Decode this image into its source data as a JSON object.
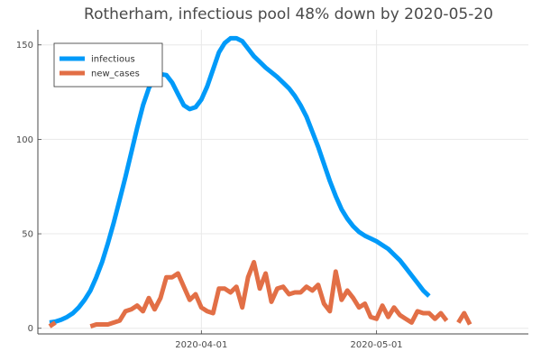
{
  "chart_data": {
    "type": "line",
    "title": "Rotherham, infectious pool 48% down by 2020-05-20",
    "xlabel": "",
    "ylabel": "",
    "x_start": "2020-03-06",
    "x_end": "2020-05-25",
    "xlim": [
      "2020-03-04",
      "2020-05-27"
    ],
    "ylim": [
      -3,
      158
    ],
    "y_ticks": [
      0,
      50,
      100,
      150
    ],
    "y_tick_labels": [
      "0",
      "50",
      "100",
      "150"
    ],
    "x_ticks": [
      "2020-04-01",
      "2020-05-01"
    ],
    "x_tick_labels": [
      "2020-04-01",
      "2020-05-01"
    ],
    "grid": true,
    "legend_position": "top-left",
    "series": [
      {
        "name": "infectious",
        "color": "#009af9",
        "values": [
          3,
          3.5,
          4.5,
          6,
          8,
          11,
          15,
          20,
          27,
          35,
          45,
          56,
          68,
          80,
          93,
          106,
          118,
          127,
          133,
          134.5,
          134,
          130,
          124,
          118,
          116,
          117,
          121,
          128,
          137,
          146,
          151,
          153.5,
          153.5,
          152,
          148,
          144,
          141,
          138,
          135.5,
          133,
          130,
          127,
          123,
          118,
          112,
          104,
          96,
          87,
          78,
          70,
          63,
          58,
          54,
          51,
          49,
          47.5,
          46,
          44,
          42,
          39,
          36,
          32,
          28,
          24,
          20,
          17
        ]
      },
      {
        "name": "new_cases",
        "color": "#e26f46",
        "values": [
          1,
          3,
          null,
          null,
          null,
          null,
          null,
          1,
          2,
          2,
          2,
          3,
          4,
          9,
          10,
          12,
          9,
          16,
          10,
          16,
          27,
          27,
          29,
          22,
          15,
          18,
          11,
          9,
          8,
          21,
          21,
          19,
          22,
          11,
          27,
          35,
          21,
          29,
          14,
          21,
          22,
          18,
          19,
          19,
          22,
          20,
          23,
          13,
          9,
          30,
          15,
          20,
          16,
          11,
          13,
          6,
          5,
          12,
          6,
          11,
          7,
          5,
          3,
          9,
          8,
          8,
          5,
          8,
          4,
          null,
          3,
          8,
          2
        ]
      }
    ]
  }
}
